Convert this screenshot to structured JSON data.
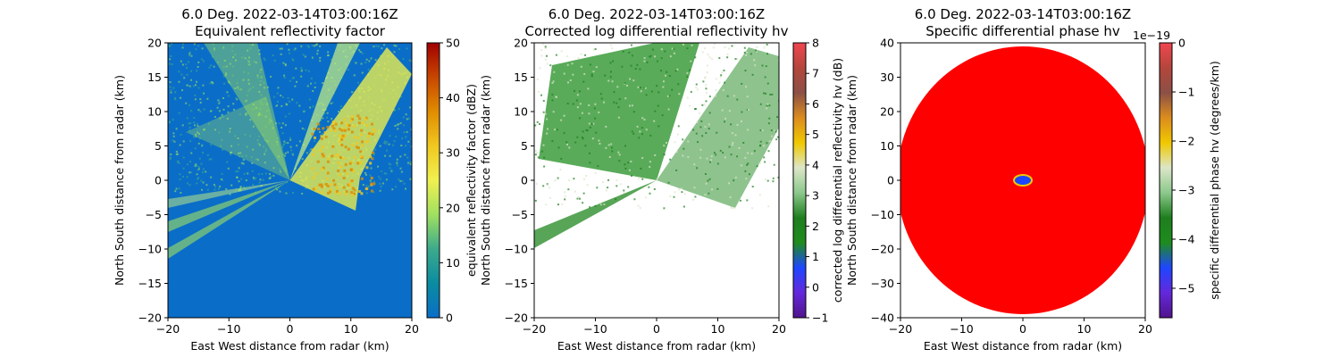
{
  "chart_data": [
    {
      "type": "heatmap",
      "title": "6.0 Deg. 2022-03-14T03:00:16Z",
      "subtitle": "Equivalent reflectivity factor",
      "xlabel": "East West distance from radar (km)",
      "ylabel": "North South distance from radar (km)",
      "xlim": [
        -20,
        20
      ],
      "ylim": [
        -20,
        20
      ],
      "xticks": [
        -20,
        -10,
        0,
        10,
        20
      ],
      "yticks": [
        -20,
        -15,
        -10,
        -5,
        0,
        5,
        10,
        15,
        20
      ],
      "colorbar": {
        "label": "equivalent reflectivity factor (dBZ)",
        "range": [
          0,
          50
        ],
        "ticks": [
          0,
          10,
          20,
          30,
          40,
          50
        ],
        "stops": [
          "#0a6ec8",
          "#0a8ca0",
          "#3caa8c",
          "#a0e060",
          "#f0f050",
          "#f0c820",
          "#e08c00",
          "#c84600",
          "#a00000"
        ]
      },
      "background_color": "#0a6ec8"
    },
    {
      "type": "heatmap",
      "title": "6.0 Deg. 2022-03-14T03:00:16Z",
      "subtitle": "Corrected log differential reflectivity hv",
      "xlabel": "East West distance from radar (km)",
      "ylabel": "North South distance from radar (km)",
      "xlim": [
        -20,
        20
      ],
      "ylim": [
        -20,
        20
      ],
      "xticks": [
        -20,
        -10,
        0,
        10,
        20
      ],
      "yticks": [
        -20,
        -15,
        -10,
        -5,
        0,
        5,
        10,
        15,
        20
      ],
      "colorbar": {
        "label": "corrected log differential reflectivity hv (dB)",
        "range": [
          -1,
          8
        ],
        "ticks": [
          -1,
          0,
          1,
          2,
          3,
          4,
          5,
          6,
          7,
          8
        ],
        "stops": [
          "#50148c",
          "#6428dc",
          "#1e46ff",
          "#1e8c1e",
          "#1e7e1e",
          "#8cc88c",
          "#dce6c8",
          "#f0c800",
          "#dc8c1e",
          "#8c5046",
          "#b4463c",
          "#f04650"
        ]
      },
      "background_color": "#ffffff"
    },
    {
      "type": "heatmap",
      "title": "6.0 Deg. 2022-03-14T03:00:16Z",
      "subtitle": "Specific differential phase hv",
      "xlabel": "East West distance from radar (km)",
      "ylabel": "North South distance from radar (km)",
      "xlim": [
        -20,
        20
      ],
      "ylim": [
        -40,
        40
      ],
      "xticks": [
        -20,
        -10,
        0,
        10,
        20
      ],
      "yticks": [
        -40,
        -30,
        -20,
        -10,
        0,
        10,
        20,
        30,
        40
      ],
      "colorbar": {
        "label": "specific differential phase hv (degrees/km)",
        "range": [
          -5.6,
          0
        ],
        "ticks": [
          0,
          -1,
          -2,
          -3,
          -4,
          -5
        ],
        "tick_labels": [
          "0",
          "−1",
          "−2",
          "−3",
          "−4",
          "−5"
        ],
        "offset_text": "1e−19",
        "stops": [
          "#50148c",
          "#6428dc",
          "#1e46ff",
          "#1e8c1e",
          "#1e7e1e",
          "#8cc88c",
          "#dce6c8",
          "#f0c800",
          "#dc8c1e",
          "#8c5046",
          "#b4463c",
          "#f04650"
        ]
      },
      "fill_color": "#ff0000",
      "background_color": "#ffffff"
    }
  ]
}
